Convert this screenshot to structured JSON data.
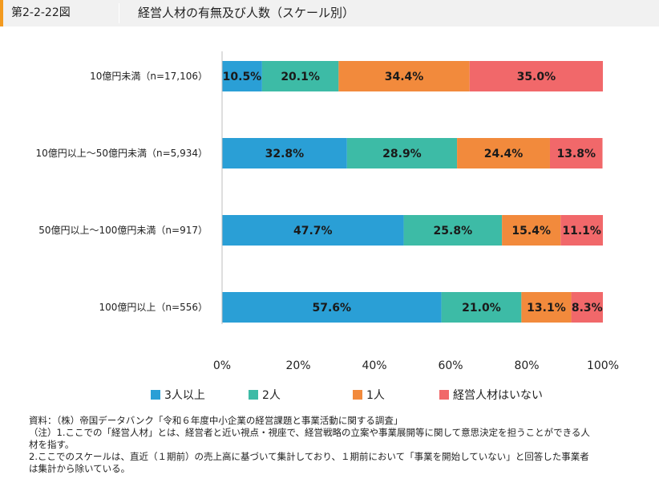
{
  "header": {
    "figure_number": "第2-2-22図",
    "title": "経営人材の有無及び人数（スケール別）"
  },
  "chart_data": {
    "type": "bar",
    "orientation": "horizontal",
    "stacked": true,
    "categories": [
      "10億円未満（n=17,106）",
      "10億円以上～50億円未満（n=5,934）",
      "50億円以上～100億円未満（n=917）",
      "100億円以上（n=556）"
    ],
    "series": [
      {
        "name": "3人以上",
        "color": "#2a9fd6",
        "values": [
          10.5,
          32.8,
          47.7,
          57.6
        ],
        "labels": [
          "10.5%",
          "32.8%",
          "47.7%",
          "57.6%"
        ]
      },
      {
        "name": "2人",
        "color": "#3dbba6",
        "values": [
          20.1,
          28.9,
          25.8,
          21.0
        ],
        "labels": [
          "20.1%",
          "28.9%",
          "25.8%",
          "21.0%"
        ]
      },
      {
        "name": "1人",
        "color": "#f28a3c",
        "values": [
          34.4,
          24.4,
          15.4,
          13.1
        ],
        "labels": [
          "34.4%",
          "24.4%",
          "15.4%",
          "13.1%"
        ]
      },
      {
        "name": "経営人材はいない",
        "color": "#f1686a",
        "values": [
          35.0,
          13.8,
          11.1,
          8.3
        ],
        "labels": [
          "35.0%",
          "13.8%",
          "11.1%",
          "8.3%"
        ]
      }
    ],
    "x_ticks": [
      "0%",
      "20%",
      "40%",
      "60%",
      "80%",
      "100%"
    ],
    "xlim": [
      0,
      100
    ],
    "grid": false,
    "legend_position": "bottom"
  },
  "notes": [
    "資料：（株）帝国データバンク「令和６年度中小企業の経営課題と事業活動に関する調査」",
    "（注）1.ここでの「経営人材」とは、経営者と近い視点・視座で、経営戦略の立案や事業展開等に関して意思決定を担うことができる人",
    "材を指す。",
    "2.ここでのスケールは、直近（１期前）の売上高に基づいて集計しており、１期前において「事業を開始していない」と回答した事業者",
    "は集計から除いている。"
  ]
}
